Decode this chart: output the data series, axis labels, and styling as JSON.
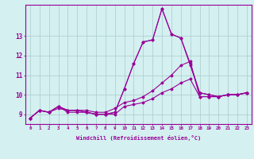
{
  "xlabel": "Windchill (Refroidissement éolien,°C)",
  "x": [
    0,
    1,
    2,
    3,
    4,
    5,
    6,
    7,
    8,
    9,
    10,
    11,
    12,
    13,
    14,
    15,
    16,
    17,
    18,
    19,
    20,
    21,
    22,
    23
  ],
  "lines": [
    [
      8.8,
      9.2,
      9.1,
      9.4,
      9.1,
      9.1,
      9.1,
      9.0,
      9.0,
      9.0,
      9.4,
      9.5,
      9.6,
      9.8,
      10.1,
      10.3,
      10.6,
      10.8,
      9.9,
      9.9,
      9.9,
      10.0,
      10.0,
      10.1
    ],
    [
      8.8,
      9.2,
      9.1,
      9.3,
      9.2,
      9.2,
      9.2,
      9.1,
      9.1,
      9.3,
      9.6,
      9.7,
      9.9,
      10.2,
      10.6,
      11.0,
      11.5,
      11.7,
      9.9,
      9.9,
      9.9,
      10.0,
      10.0,
      10.1
    ],
    [
      8.8,
      9.2,
      9.1,
      9.4,
      9.2,
      9.2,
      9.1,
      9.0,
      9.0,
      9.1,
      10.3,
      11.6,
      12.7,
      12.8,
      14.4,
      13.1,
      12.9,
      11.6,
      10.1,
      10.0,
      9.9,
      10.0,
      10.0,
      10.1
    ],
    [
      8.8,
      9.2,
      9.1,
      9.4,
      9.2,
      9.2,
      9.1,
      9.0,
      9.0,
      9.1,
      10.3,
      11.6,
      12.7,
      12.8,
      14.4,
      13.1,
      12.9,
      11.5,
      10.1,
      10.0,
      9.9,
      10.0,
      10.0,
      10.1
    ]
  ],
  "line_color": "#990099",
  "bg_color": "#d4f0f0",
  "grid_color": "#aacccc",
  "axis_color": "#990099",
  "tick_color": "#990099",
  "ylim": [
    8.5,
    14.6
  ],
  "yticks": [
    9,
    10,
    11,
    12,
    13
  ],
  "xlim": [
    -0.5,
    23.5
  ],
  "marker": "D",
  "marker_size": 1.5,
  "linewidth": 0.8
}
